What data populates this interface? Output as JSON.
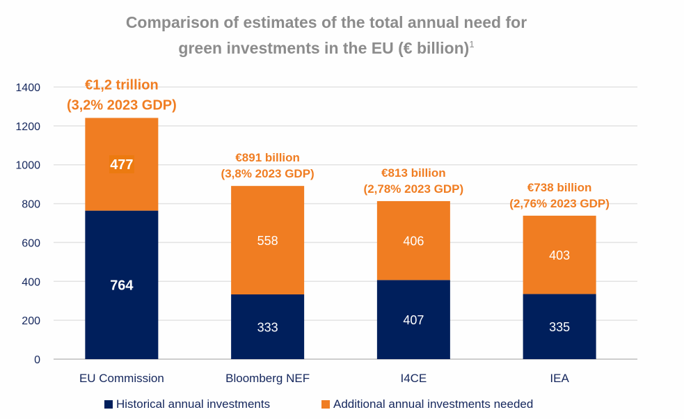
{
  "chart_data": {
    "type": "bar",
    "stacked": true,
    "title": "Comparison of estimates of the total annual need for green investments in the EU (€ billion)",
    "title_lines": [
      "Comparison of estimates of the total annual need for",
      "green investments in the EU (€ billion)"
    ],
    "title_footnote": "1",
    "xlabel": "",
    "ylabel": "",
    "ylim": [
      0,
      1400
    ],
    "yticks": [
      0,
      200,
      400,
      600,
      800,
      1000,
      1200,
      1400
    ],
    "grid": true,
    "categories": [
      "EU Commission",
      "Bloomberg NEF",
      "I4CE",
      "IEA"
    ],
    "series": [
      {
        "name": "Historical annual investments",
        "color": "#001f5c",
        "values": [
          764,
          333,
          407,
          335
        ]
      },
      {
        "name": "Additional annual investments needed",
        "color": "#f07d22",
        "values": [
          477,
          558,
          406,
          403
        ]
      }
    ],
    "total_annotations": [
      {
        "category": "EU Commission",
        "total": 1241,
        "lines": [
          "€1,2 trillion",
          "(3,2% 2023 GDP)"
        ]
      },
      {
        "category": "Bloomberg NEF",
        "total": 891,
        "lines": [
          "€891 billion",
          "(3,8% 2023 GDP)"
        ]
      },
      {
        "category": "I4CE",
        "total": 813,
        "lines": [
          "€813 billion",
          "(2,78% 2023 GDP)"
        ]
      },
      {
        "category": "IEA",
        "total": 738,
        "lines": [
          "€738 billion",
          "(2,76% 2023 GDP)"
        ]
      }
    ],
    "highlighted_labels": [
      {
        "category": "EU Commission",
        "series": "Additional annual investments needed",
        "text_color": "#ffff00",
        "background": "#ec7a10"
      }
    ],
    "legend_position": "bottom",
    "colors": {
      "grid": "#e3e3e3",
      "axis": "#bdbdbd",
      "tick_text": "#14265c",
      "title": "#8c8c8c",
      "annotation": "#f07d22"
    }
  }
}
